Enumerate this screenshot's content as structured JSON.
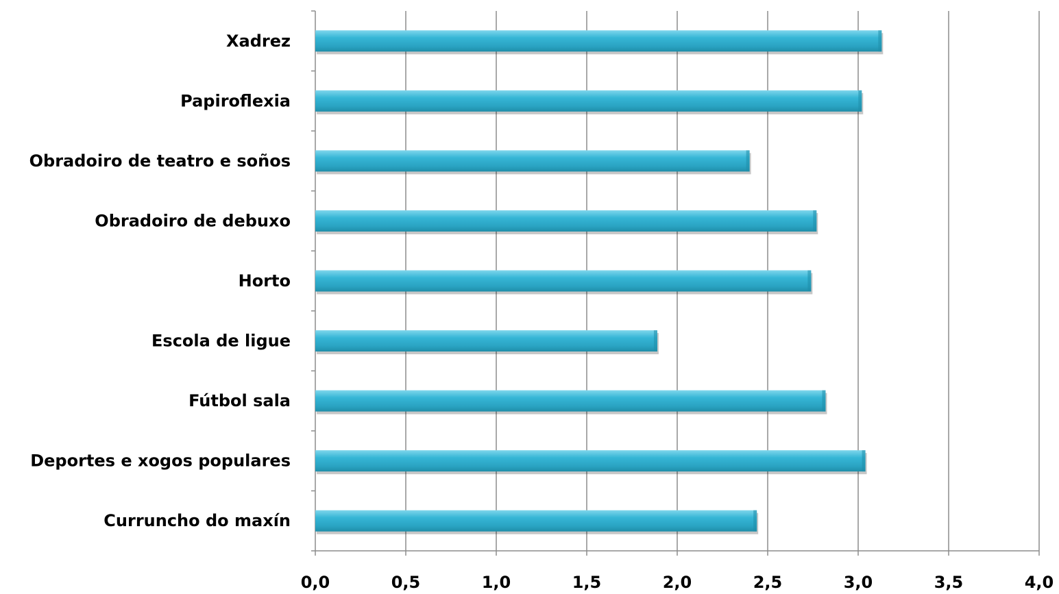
{
  "chart_data": {
    "type": "bar",
    "orientation": "horizontal",
    "title": "",
    "xlabel": "",
    "ylabel": "",
    "categories": [
      "Xadrez",
      "Papiroflexia",
      "Obradoiro de teatro e soños",
      "Obradoiro de debuxo",
      "Horto",
      "Escola de ligue",
      "Fútbol sala",
      "Deportes e xogos populares",
      "Curruncho do maxín"
    ],
    "values": [
      3.13,
      3.02,
      2.4,
      2.77,
      2.74,
      1.89,
      2.82,
      3.04,
      2.44
    ],
    "xlim": [
      0,
      4
    ],
    "ticks": [
      "0,0",
      "0,5",
      "1,0",
      "1,5",
      "2,0",
      "2,5",
      "3,0",
      "3,5",
      "4,0"
    ],
    "tick_values": [
      0,
      0.5,
      1.0,
      1.5,
      2.0,
      2.5,
      3.0,
      3.5,
      4.0
    ],
    "grid": "vertical",
    "legend": "none",
    "colors": {
      "bar_light": "#7fd6ec",
      "bar_main": "#36b6d6",
      "bar_dark": "#1f8ea9",
      "gridline": "#8c8c8c",
      "axis": "#8c8c8c"
    }
  }
}
